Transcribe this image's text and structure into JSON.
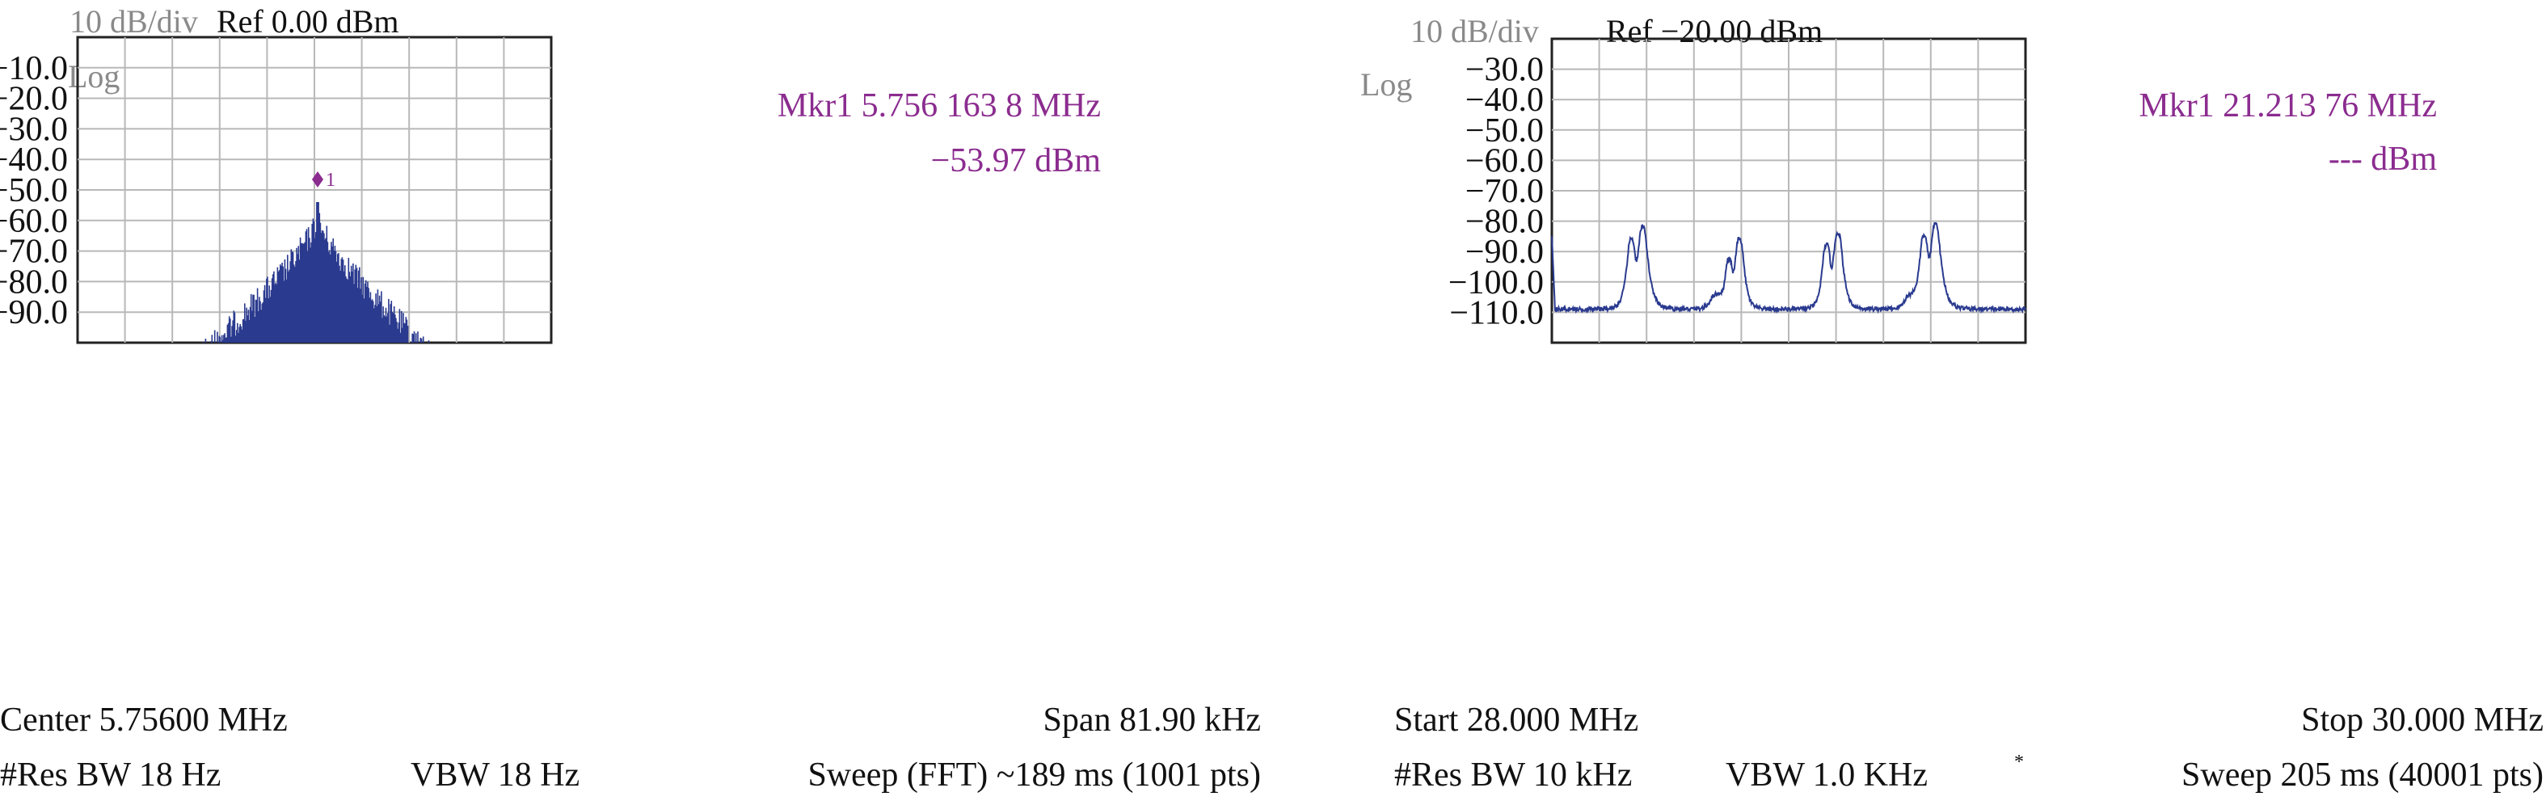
{
  "chart_data": [
    {
      "type": "line",
      "panel": "left",
      "header": {
        "scale": "10 dB/div",
        "ref": "Ref 0.00 dBm"
      },
      "scale_type": "Log",
      "marker": {
        "label": "Mkr1 5.756 163 8 MHz",
        "value": "−53.97 dBm",
        "id": "1"
      },
      "y_tick_labels": [
        "−10.0",
        "−20.0",
        "−30.0",
        "−40.0",
        "−50.0",
        "−60.0",
        "−70.0",
        "−80.0",
        "−90.0"
      ],
      "y_ticks": [
        -10,
        -20,
        -30,
        -40,
        -50,
        -60,
        -70,
        -80,
        -90
      ],
      "ylim": [
        -100,
        0
      ],
      "x_center_mhz": 5.756,
      "x_span_khz": 81.9,
      "footer": {
        "left_line1": "Center 5.75600 MHz",
        "right_line1": "Span 81.90 kHz",
        "res_bw": "#Res BW 18 Hz",
        "vbw": "VBW 18 Hz",
        "sweep": "Sweep (FFT) ~189 ms (1001 pts)"
      },
      "grid": true,
      "series": [
        {
          "peak_offset_khz": 0.0,
          "peak_dbm": -53.97,
          "noise_floor_dbm": -100,
          "color": "#2a3a8f"
        }
      ]
    },
    {
      "type": "line",
      "panel": "right",
      "header": {
        "scale": "10 dB/div",
        "ref": "Ref −20.00 dBm"
      },
      "scale_type": "Log",
      "marker": {
        "label": "Mkr1 21.213 76 MHz",
        "value": "--- dBm"
      },
      "y_tick_labels": [
        "−30.0",
        "−40.0",
        "−50.0",
        "−60.0",
        "−70.0",
        "−80.0",
        "−90.0",
        "−100.0",
        "−110.0"
      ],
      "y_ticks": [
        -30,
        -40,
        -50,
        -60,
        -70,
        -80,
        -90,
        -100,
        -110
      ],
      "ylim": [
        -120,
        -20
      ],
      "xlim_mhz": [
        28.0,
        30.0
      ],
      "footer": {
        "left_line1": "Start 28.000 MHz",
        "right_line1": "Stop 30.000 MHz",
        "res_bw": "#Res BW 10 kHz",
        "vbw": "VBW 1.0 KHz",
        "vbw_mark": "*",
        "sweep": "Sweep 205 ms (40001 pts)"
      },
      "grid": true,
      "series": [
        {
          "noise_floor_dbm": -109,
          "color": "#2a3a8f",
          "peaks": [
            {
              "x_mhz": 28.336,
              "dbm": -86
            },
            {
              "x_mhz": 28.384,
              "dbm": -82
            },
            {
              "x_mhz": 28.7,
              "dbm": -106
            },
            {
              "x_mhz": 28.748,
              "dbm": -93
            },
            {
              "x_mhz": 28.792,
              "dbm": -86
            },
            {
              "x_mhz": 29.16,
              "dbm": -88
            },
            {
              "x_mhz": 29.208,
              "dbm": -84
            },
            {
              "x_mhz": 29.52,
              "dbm": -107
            },
            {
              "x_mhz": 29.572,
              "dbm": -85
            },
            {
              "x_mhz": 29.62,
              "dbm": -81
            }
          ]
        }
      ]
    }
  ]
}
